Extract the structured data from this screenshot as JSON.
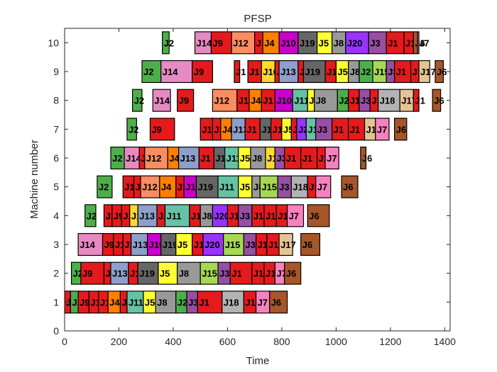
{
  "chart_data": {
    "type": "gantt",
    "title": "PFSP",
    "xlabel": "Time",
    "ylabel": "Machine number",
    "xlim": [
      0,
      1420
    ],
    "ylim": [
      0,
      10.5
    ],
    "xticks": [
      0,
      200,
      400,
      600,
      800,
      1000,
      1200,
      1400
    ],
    "yticks": [
      0,
      1,
      2,
      3,
      4,
      5,
      6,
      7,
      8,
      9,
      10
    ],
    "grid": false,
    "legend": "none",
    "colors": {
      "J1": "#e41a1c",
      "J2": "#4daf4a",
      "J3": "#984ea3",
      "J4": "#ff7f00",
      "J5": "#ffff33",
      "J6": "#a65628",
      "J7": "#f781bf",
      "J8": "#999999",
      "J9": "#e41a1c",
      "J10": "#cc00cc",
      "J11": "#66c2a5",
      "J12": "#fc8d62",
      "J13": "#8da0cb",
      "J14": "#e78ac3",
      "J15": "#a6d854",
      "J16": "#ffd92f",
      "J17": "#e5c494",
      "J18": "#b3b3b3",
      "J19": "#666666",
      "J20": "#9933ff"
    },
    "machines": [
      {
        "machine": 1,
        "ops": [
          {
            "job": "J1",
            "start": 0,
            "end": 22
          },
          {
            "job": "J2",
            "start": 22,
            "end": 50
          },
          {
            "job": "J9",
            "start": 50,
            "end": 90
          },
          {
            "job": "J1",
            "start": 90,
            "end": 125
          },
          {
            "job": "J1",
            "start": 125,
            "end": 160
          },
          {
            "job": "J4",
            "start": 160,
            "end": 205
          },
          {
            "job": "J1",
            "start": 205,
            "end": 230
          },
          {
            "job": "J11",
            "start": 230,
            "end": 290
          },
          {
            "job": "J5",
            "start": 290,
            "end": 335
          },
          {
            "job": "J8",
            "start": 335,
            "end": 410
          },
          {
            "job": "J2",
            "start": 410,
            "end": 450
          },
          {
            "job": "J3",
            "start": 450,
            "end": 490
          },
          {
            "job": "J1",
            "start": 490,
            "end": 580
          },
          {
            "job": "J18",
            "start": 580,
            "end": 660
          },
          {
            "job": "J1",
            "start": 660,
            "end": 705
          },
          {
            "job": "J7",
            "start": 705,
            "end": 755
          },
          {
            "job": "J6",
            "start": 755,
            "end": 820
          }
        ]
      },
      {
        "machine": 2,
        "ops": [
          {
            "job": "J2",
            "start": 25,
            "end": 60
          },
          {
            "job": "J9",
            "start": 60,
            "end": 145
          },
          {
            "job": "J1",
            "start": 145,
            "end": 170
          },
          {
            "job": "J13",
            "start": 170,
            "end": 235
          },
          {
            "job": "J1",
            "start": 235,
            "end": 270
          },
          {
            "job": "J19",
            "start": 270,
            "end": 345
          },
          {
            "job": "J5",
            "start": 345,
            "end": 415
          },
          {
            "job": "J8",
            "start": 415,
            "end": 500
          },
          {
            "job": "J15",
            "start": 500,
            "end": 565
          },
          {
            "job": "J3",
            "start": 565,
            "end": 610
          },
          {
            "job": "J1",
            "start": 610,
            "end": 690
          },
          {
            "job": "J1",
            "start": 690,
            "end": 735
          },
          {
            "job": "J1",
            "start": 735,
            "end": 775
          },
          {
            "job": "J7",
            "start": 775,
            "end": 810
          },
          {
            "job": "J6",
            "start": 810,
            "end": 870
          }
        ]
      },
      {
        "machine": 3,
        "ops": [
          {
            "job": "J14",
            "start": 50,
            "end": 140
          },
          {
            "job": "J9",
            "start": 140,
            "end": 180
          },
          {
            "job": "J1",
            "start": 180,
            "end": 215
          },
          {
            "job": "J1",
            "start": 215,
            "end": 245
          },
          {
            "job": "J13",
            "start": 245,
            "end": 305
          },
          {
            "job": "J10",
            "start": 305,
            "end": 355
          },
          {
            "job": "J19",
            "start": 355,
            "end": 410
          },
          {
            "job": "J5",
            "start": 410,
            "end": 470
          },
          {
            "job": "J1",
            "start": 470,
            "end": 510
          },
          {
            "job": "J20",
            "start": 510,
            "end": 585
          },
          {
            "job": "J15",
            "start": 585,
            "end": 660
          },
          {
            "job": "J3",
            "start": 660,
            "end": 705
          },
          {
            "job": "J1",
            "start": 705,
            "end": 745
          },
          {
            "job": "J1",
            "start": 745,
            "end": 790
          },
          {
            "job": "J17",
            "start": 790,
            "end": 840
          },
          {
            "job": "J6",
            "start": 870,
            "end": 940
          }
        ]
      },
      {
        "machine": 4,
        "ops": [
          {
            "job": "J2",
            "start": 75,
            "end": 115
          },
          {
            "job": "J1",
            "start": 145,
            "end": 175
          },
          {
            "job": "J9",
            "start": 175,
            "end": 210
          },
          {
            "job": "J1",
            "start": 210,
            "end": 240
          },
          {
            "job": "J16",
            "start": 240,
            "end": 270
          },
          {
            "job": "J13",
            "start": 270,
            "end": 340
          },
          {
            "job": "J1",
            "start": 340,
            "end": 370
          },
          {
            "job": "J11",
            "start": 370,
            "end": 460
          },
          {
            "job": "J1",
            "start": 460,
            "end": 500
          },
          {
            "job": "J8",
            "start": 500,
            "end": 545
          },
          {
            "job": "J20",
            "start": 545,
            "end": 600
          },
          {
            "job": "J1",
            "start": 600,
            "end": 640
          },
          {
            "job": "J3",
            "start": 640,
            "end": 690
          },
          {
            "job": "J1",
            "start": 690,
            "end": 735
          },
          {
            "job": "J1",
            "start": 735,
            "end": 780
          },
          {
            "job": "J1",
            "start": 780,
            "end": 820
          },
          {
            "job": "J7",
            "start": 820,
            "end": 880
          },
          {
            "job": "J6",
            "start": 895,
            "end": 975
          }
        ]
      },
      {
        "machine": 5,
        "ops": [
          {
            "job": "J2",
            "start": 120,
            "end": 175
          },
          {
            "job": "J1",
            "start": 215,
            "end": 255
          },
          {
            "job": "J9",
            "start": 255,
            "end": 280
          },
          {
            "job": "J12",
            "start": 280,
            "end": 350
          },
          {
            "job": "J4",
            "start": 350,
            "end": 410
          },
          {
            "job": "J1",
            "start": 410,
            "end": 440
          },
          {
            "job": "J10",
            "start": 440,
            "end": 485
          },
          {
            "job": "J19",
            "start": 485,
            "end": 565
          },
          {
            "job": "J11",
            "start": 565,
            "end": 640
          },
          {
            "job": "J5",
            "start": 640,
            "end": 690
          },
          {
            "job": "J8",
            "start": 690,
            "end": 720
          },
          {
            "job": "J15",
            "start": 720,
            "end": 785
          },
          {
            "job": "J3",
            "start": 785,
            "end": 835
          },
          {
            "job": "J18",
            "start": 835,
            "end": 895
          },
          {
            "job": "J1",
            "start": 895,
            "end": 925
          },
          {
            "job": "J7",
            "start": 925,
            "end": 980
          },
          {
            "job": "J6",
            "start": 1020,
            "end": 1080
          }
        ]
      },
      {
        "machine": 6,
        "ops": [
          {
            "job": "J2",
            "start": 170,
            "end": 220
          },
          {
            "job": "J14",
            "start": 220,
            "end": 275
          },
          {
            "job": "J9",
            "start": 275,
            "end": 295
          },
          {
            "job": "J12",
            "start": 295,
            "end": 380
          },
          {
            "job": "J4",
            "start": 380,
            "end": 420
          },
          {
            "job": "J13",
            "start": 420,
            "end": 495
          },
          {
            "job": "J1",
            "start": 495,
            "end": 550
          },
          {
            "job": "J19",
            "start": 550,
            "end": 590
          },
          {
            "job": "J11",
            "start": 590,
            "end": 640
          },
          {
            "job": "J5",
            "start": 640,
            "end": 685
          },
          {
            "job": "J8",
            "start": 685,
            "end": 740
          },
          {
            "job": "J16",
            "start": 740,
            "end": 775
          },
          {
            "job": "J3",
            "start": 775,
            "end": 810
          },
          {
            "job": "J1",
            "start": 810,
            "end": 870
          },
          {
            "job": "J1",
            "start": 870,
            "end": 930
          },
          {
            "job": "J1",
            "start": 930,
            "end": 960
          },
          {
            "job": "J7",
            "start": 960,
            "end": 1010
          },
          {
            "job": "J6",
            "start": 1090,
            "end": 1110
          }
        ]
      },
      {
        "machine": 7,
        "ops": [
          {
            "job": "J2",
            "start": 230,
            "end": 265
          },
          {
            "job": "J9",
            "start": 315,
            "end": 405
          },
          {
            "job": "J1",
            "start": 500,
            "end": 545
          },
          {
            "job": "J1",
            "start": 545,
            "end": 575
          },
          {
            "job": "J4",
            "start": 575,
            "end": 615
          },
          {
            "job": "J13",
            "start": 615,
            "end": 665
          },
          {
            "job": "J1",
            "start": 665,
            "end": 720
          },
          {
            "job": "J19",
            "start": 720,
            "end": 760
          },
          {
            "job": "J1",
            "start": 760,
            "end": 800
          },
          {
            "job": "J5",
            "start": 800,
            "end": 835
          },
          {
            "job": "J1",
            "start": 835,
            "end": 855
          },
          {
            "job": "J20",
            "start": 855,
            "end": 890
          },
          {
            "job": "J11",
            "start": 890,
            "end": 925
          },
          {
            "job": "J3",
            "start": 925,
            "end": 985
          },
          {
            "job": "J1",
            "start": 985,
            "end": 1045
          },
          {
            "job": "J1",
            "start": 1045,
            "end": 1105
          },
          {
            "job": "J17",
            "start": 1105,
            "end": 1145
          },
          {
            "job": "J7",
            "start": 1145,
            "end": 1195
          },
          {
            "job": "J6",
            "start": 1215,
            "end": 1260
          }
        ]
      },
      {
        "machine": 8,
        "ops": [
          {
            "job": "J2",
            "start": 250,
            "end": 285
          },
          {
            "job": "J14",
            "start": 325,
            "end": 390
          },
          {
            "job": "J9",
            "start": 415,
            "end": 475
          },
          {
            "job": "J12",
            "start": 545,
            "end": 635
          },
          {
            "job": "J1",
            "start": 635,
            "end": 680
          },
          {
            "job": "J4",
            "start": 680,
            "end": 725
          },
          {
            "job": "J1",
            "start": 725,
            "end": 775
          },
          {
            "job": "J10",
            "start": 775,
            "end": 840
          },
          {
            "job": "J11",
            "start": 840,
            "end": 895
          },
          {
            "job": "J5",
            "start": 895,
            "end": 920
          },
          {
            "job": "J8",
            "start": 920,
            "end": 1005
          },
          {
            "job": "J2",
            "start": 1005,
            "end": 1045
          },
          {
            "job": "J1",
            "start": 1045,
            "end": 1085
          },
          {
            "job": "J3",
            "start": 1085,
            "end": 1125
          },
          {
            "job": "J1",
            "start": 1125,
            "end": 1155
          },
          {
            "job": "J18",
            "start": 1155,
            "end": 1235
          },
          {
            "job": "J17",
            "start": 1235,
            "end": 1285
          },
          {
            "job": "J1",
            "start": 1285,
            "end": 1305
          },
          {
            "job": "J6",
            "start": 1355,
            "end": 1385
          }
        ]
      },
      {
        "machine": 9,
        "ops": [
          {
            "job": "J2",
            "start": 285,
            "end": 355
          },
          {
            "job": "J14",
            "start": 355,
            "end": 470
          },
          {
            "job": "J9",
            "start": 470,
            "end": 545
          },
          {
            "job": "J1",
            "start": 625,
            "end": 645
          },
          {
            "job": "J1",
            "start": 675,
            "end": 725
          },
          {
            "job": "J16",
            "start": 725,
            "end": 775
          },
          {
            "job": "J1",
            "start": 775,
            "end": 790
          },
          {
            "job": "J13",
            "start": 790,
            "end": 860
          },
          {
            "job": "J1",
            "start": 860,
            "end": 880
          },
          {
            "job": "J19",
            "start": 880,
            "end": 960
          },
          {
            "job": "J1",
            "start": 960,
            "end": 1000
          },
          {
            "job": "J5",
            "start": 1000,
            "end": 1045
          },
          {
            "job": "J8",
            "start": 1045,
            "end": 1085
          },
          {
            "job": "J2",
            "start": 1085,
            "end": 1135
          },
          {
            "job": "J15",
            "start": 1135,
            "end": 1185
          },
          {
            "job": "J3",
            "start": 1185,
            "end": 1215
          },
          {
            "job": "J1",
            "start": 1215,
            "end": 1275
          },
          {
            "job": "J1",
            "start": 1275,
            "end": 1305
          },
          {
            "job": "J17",
            "start": 1305,
            "end": 1345
          },
          {
            "job": "J6",
            "start": 1365,
            "end": 1395
          }
        ]
      },
      {
        "machine": 10,
        "ops": [
          {
            "job": "J2",
            "start": 360,
            "end": 385
          },
          {
            "job": "J14",
            "start": 480,
            "end": 540
          },
          {
            "job": "J9",
            "start": 540,
            "end": 615
          },
          {
            "job": "J12",
            "start": 615,
            "end": 700
          },
          {
            "job": "J1",
            "start": 700,
            "end": 730
          },
          {
            "job": "J4",
            "start": 730,
            "end": 790
          },
          {
            "job": "J10",
            "start": 790,
            "end": 860
          },
          {
            "job": "J19",
            "start": 860,
            "end": 930
          },
          {
            "job": "J5",
            "start": 930,
            "end": 985
          },
          {
            "job": "J8",
            "start": 985,
            "end": 1035
          },
          {
            "job": "J20",
            "start": 1035,
            "end": 1120
          },
          {
            "job": "J3",
            "start": 1120,
            "end": 1185
          },
          {
            "job": "J1",
            "start": 1185,
            "end": 1250
          },
          {
            "job": "J1",
            "start": 1250,
            "end": 1285
          },
          {
            "job": "J6",
            "start": 1285,
            "end": 1300
          },
          {
            "job": "J7",
            "start": 1300,
            "end": 1305
          }
        ]
      }
    ]
  }
}
